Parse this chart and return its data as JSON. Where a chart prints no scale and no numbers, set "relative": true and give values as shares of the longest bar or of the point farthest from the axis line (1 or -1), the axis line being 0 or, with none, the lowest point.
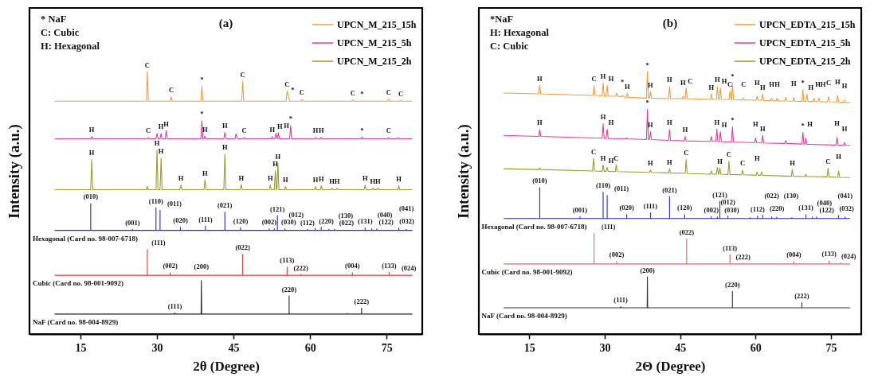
{
  "chart_data": [
    {
      "type": "line",
      "title": "(a)",
      "xlabel": "2θ (Degree)",
      "ylabel": "Intensity (a.u.)",
      "relative": true,
      "tick_labels": "x",
      "legend": "top right",
      "xlim": [
        5,
        82
      ],
      "xticks": [
        15,
        30,
        45,
        60,
        75
      ],
      "series": [
        {
          "name": "UPCN_M_215_15h",
          "color": "#f0a040",
          "x": [
            10,
            27.9,
            28.1,
            28.3,
            32.6,
            32.8,
            33.0,
            38.6,
            38.8,
            39.0,
            46.6,
            46.8,
            47.0,
            55.3,
            55.5,
            55.8,
            56.0,
            58.2,
            58.4,
            58.6,
            68.2,
            68.4,
            68.6,
            70.0,
            70.2,
            70.4,
            75.2,
            75.4,
            75.6,
            77.6,
            77.8,
            78.0,
            80
          ],
          "values": [
            0.887,
            0.887,
            1.0,
            0.887,
            0.887,
            0.904,
            0.887,
            0.887,
            0.943,
            0.887,
            0.887,
            0.962,
            0.887,
            0.887,
            0.926,
            0.905,
            0.887,
            0.887,
            0.894,
            0.887,
            0.887,
            0.892,
            0.887,
            0.887,
            0.889,
            0.887,
            0.887,
            0.895,
            0.887,
            0.887,
            0.89,
            0.887,
            0.887
          ]
        },
        {
          "name": "UPCN_M_215_5h",
          "color": "#e0409a",
          "x": [
            10,
            17.0,
            17.2,
            17.4,
            28.1,
            28.3,
            28.5,
            29.8,
            30.0,
            30.2,
            30.6,
            30.8,
            31.0,
            31.6,
            31.8,
            32.0,
            38.6,
            38.8,
            39.0,
            39.2,
            39.4,
            39.6,
            43.1,
            43.3,
            43.5,
            45.3,
            45.5,
            45.7,
            46.9,
            47.1,
            47.3,
            52.4,
            52.6,
            52.8,
            53.1,
            53.3,
            53.5,
            53.6,
            53.8,
            54.0,
            56.0,
            56.2,
            56.4,
            60.9,
            61.1,
            61.3,
            62.0,
            62.2,
            62.4,
            70.0,
            70.2,
            70.4,
            75.2,
            75.4,
            75.6,
            77.1,
            77.3,
            77.5,
            80
          ],
          "values": [
            0.744,
            0.744,
            0.752,
            0.744,
            0.744,
            0.749,
            0.744,
            0.744,
            0.764,
            0.744,
            0.744,
            0.764,
            0.744,
            0.744,
            0.775,
            0.744,
            0.744,
            0.813,
            0.744,
            0.744,
            0.754,
            0.744,
            0.744,
            0.768,
            0.744,
            0.744,
            0.763,
            0.744,
            0.744,
            0.749,
            0.744,
            0.744,
            0.752,
            0.744,
            0.744,
            0.764,
            0.744,
            0.744,
            0.767,
            0.744,
            0.744,
            0.794,
            0.744,
            0.744,
            0.749,
            0.744,
            0.744,
            0.749,
            0.744,
            0.744,
            0.751,
            0.744,
            0.744,
            0.749,
            0.744,
            0.744,
            0.749,
            0.744,
            0.744
          ]
        },
        {
          "name": "UPCN_M_215_2h",
          "color": "#9c9c2c",
          "x": [
            10,
            17.0,
            17.2,
            17.4,
            27.9,
            28.1,
            28.3,
            29.8,
            30.0,
            30.2,
            30.6,
            30.8,
            31.0,
            34.5,
            34.7,
            34.9,
            39.2,
            39.4,
            39.6,
            43.1,
            43.3,
            43.5,
            46.3,
            46.5,
            46.7,
            52.0,
            52.2,
            52.4,
            53.0,
            53.2,
            53.4,
            53.5,
            53.7,
            53.9,
            55.0,
            55.2,
            55.4,
            60.9,
            61.1,
            61.3,
            62.0,
            62.2,
            62.4,
            64.1,
            64.3,
            64.5,
            65.1,
            65.3,
            65.5,
            70.6,
            70.8,
            71.0,
            72.1,
            72.3,
            72.5,
            73.1,
            73.3,
            73.5,
            77.2,
            77.4,
            77.6,
            80
          ],
          "values": [
            0.55,
            0.55,
            0.665,
            0.55,
            0.55,
            0.562,
            0.55,
            0.55,
            0.701,
            0.55,
            0.55,
            0.67,
            0.55,
            0.55,
            0.567,
            0.55,
            0.55,
            0.587,
            0.55,
            0.55,
            0.685,
            0.55,
            0.55,
            0.569,
            0.55,
            0.55,
            0.568,
            0.55,
            0.55,
            0.622,
            0.55,
            0.55,
            0.651,
            0.55,
            0.55,
            0.562,
            0.55,
            0.55,
            0.562,
            0.55,
            0.55,
            0.565,
            0.55,
            0.55,
            0.556,
            0.55,
            0.55,
            0.556,
            0.55,
            0.55,
            0.567,
            0.55,
            0.55,
            0.556,
            0.55,
            0.55,
            0.556,
            0.55,
            0.55,
            0.565,
            0.55,
            0.55
          ]
        },
        {
          "color": "#2828c8",
          "x": [
            10,
            17.0,
            17.0,
            17.0,
            25.2,
            25.2,
            25.2,
            29.8,
            29.8,
            29.8,
            30.6,
            30.6,
            30.6,
            34.6,
            34.6,
            34.6,
            39.5,
            39.5,
            39.5,
            43.3,
            43.3,
            43.3,
            46.4,
            46.4,
            46.4,
            52.0,
            52.0,
            52.0,
            53.0,
            53.0,
            53.0,
            53.6,
            53.6,
            53.6,
            55.1,
            55.1,
            55.1,
            59.5,
            59.5,
            59.5,
            61.0,
            61.0,
            61.0,
            62.2,
            62.2,
            62.2,
            63.7,
            63.7,
            63.7,
            64.8,
            64.8,
            64.8,
            70.8,
            70.8,
            70.8,
            72.1,
            72.1,
            72.1,
            73.1,
            73.1,
            73.1,
            77.4,
            77.4,
            77.4,
            78.9,
            78.9,
            78.9,
            80
          ],
          "values": [
            0.395,
            0.395,
            0.497,
            0.395,
            0.395,
            0.399,
            0.395,
            0.395,
            0.481,
            0.395,
            0.395,
            0.471,
            0.395,
            0.395,
            0.407,
            0.395,
            0.395,
            0.412,
            0.395,
            0.395,
            0.464,
            0.395,
            0.395,
            0.405,
            0.395,
            0.395,
            0.401,
            0.395,
            0.395,
            0.401,
            0.395,
            0.395,
            0.451,
            0.395,
            0.395,
            0.401,
            0.395,
            0.395,
            0.399,
            0.395,
            0.395,
            0.404,
            0.395,
            0.395,
            0.407,
            0.395,
            0.395,
            0.399,
            0.395,
            0.395,
            0.399,
            0.395,
            0.395,
            0.405,
            0.395,
            0.395,
            0.401,
            0.395,
            0.395,
            0.401,
            0.395,
            0.395,
            0.404,
            0.395,
            0.395,
            0.399,
            0.395,
            0.395
          ]
        },
        {
          "color": "#e03a3a",
          "x": [
            10,
            28.1,
            28.1,
            28.1,
            32.6,
            32.6,
            32.6,
            46.8,
            46.8,
            46.8,
            55.5,
            55.5,
            55.5,
            58.2,
            58.2,
            58.2,
            68.3,
            68.3,
            68.3,
            75.5,
            75.5,
            75.5,
            77.8,
            77.8,
            77.8,
            80
          ],
          "values": [
            0.224,
            0.224,
            0.322,
            0.224,
            0.224,
            0.234,
            0.224,
            0.224,
            0.304,
            0.224,
            0.224,
            0.255,
            0.224,
            0.224,
            0.227,
            0.224,
            0.224,
            0.234,
            0.224,
            0.224,
            0.235,
            0.224,
            0.224,
            0.225,
            0.224,
            0.224
          ]
        },
        {
          "color": "#222222",
          "x": [
            10,
            33.4,
            33.5,
            33.6,
            38.65,
            38.7,
            38.75,
            55.9,
            55.9,
            55.9,
            67.3,
            67.3,
            67.3,
            70.1,
            70.1,
            70.1,
            80
          ],
          "values": [
            0.076,
            0.076,
            0.08,
            0.076,
            0.076,
            0.204,
            0.076,
            0.076,
            0.145,
            0.076,
            0.076,
            0.079,
            0.076,
            0.076,
            0.098,
            0.076,
            0.076
          ]
        }
      ],
      "annotations": [
        "* NaF",
        "C: Cubic",
        "H: Hexagonal",
        {
          "text": "C",
          "x": 28.1,
          "y": 1.0
        },
        {
          "text": "C",
          "x": 32.8,
          "y": 0.904
        },
        {
          "text": "*",
          "x": 38.8,
          "y": 0.943
        },
        {
          "text": "C",
          "x": 46.8,
          "y": 0.962
        },
        {
          "text": "C",
          "x": 55.5,
          "y": 0.926
        },
        {
          "text": "*",
          "x": 55.8,
          "y": 0.905
        },
        {
          "text": "C",
          "x": 58.4,
          "y": 0.894
        },
        {
          "text": "C",
          "x": 68.4,
          "y": 0.892
        },
        {
          "text": "*",
          "x": 70.2,
          "y": 0.889
        },
        {
          "text": "C",
          "x": 75.4,
          "y": 0.895
        },
        {
          "text": "C",
          "x": 77.8,
          "y": 0.89
        },
        {
          "text": "H",
          "x": 17.2,
          "y": 0.752
        },
        {
          "text": "C",
          "x": 28.3,
          "y": 0.749
        },
        {
          "text": "H",
          "x": 30.8,
          "y": 0.764
        },
        {
          "text": "H",
          "x": 31.8,
          "y": 0.775
        },
        {
          "text": "*",
          "x": 38.8,
          "y": 0.813
        },
        {
          "text": "H",
          "x": 39.4,
          "y": 0.754
        },
        {
          "text": "H",
          "x": 43.3,
          "y": 0.768
        },
        {
          "text": "C",
          "x": 47.1,
          "y": 0.749
        },
        {
          "text": "H",
          "x": 52.6,
          "y": 0.752
        },
        {
          "text": "H",
          "x": 53.3,
          "y": 0.764
        },
        {
          "text": "H",
          "x": 53.8,
          "y": 0.767
        },
        {
          "text": "*",
          "x": 56.2,
          "y": 0.794
        },
        {
          "text": "H",
          "x": 61.1,
          "y": 0.749
        },
        {
          "text": "H",
          "x": 62.2,
          "y": 0.749
        },
        {
          "text": "*",
          "x": 70.2,
          "y": 0.751
        },
        {
          "text": "C",
          "x": 75.4,
          "y": 0.749
        },
        {
          "text": "H",
          "x": 17.2,
          "y": 0.665
        },
        {
          "text": "H",
          "x": 30.0,
          "y": 0.701
        },
        {
          "text": "H",
          "x": 30.8,
          "y": 0.67
        },
        {
          "text": "H",
          "x": 34.7,
          "y": 0.567
        },
        {
          "text": "H",
          "x": 39.4,
          "y": 0.587
        },
        {
          "text": "H",
          "x": 43.3,
          "y": 0.685
        },
        {
          "text": "H",
          "x": 46.5,
          "y": 0.569
        },
        {
          "text": "H",
          "x": 52.2,
          "y": 0.568
        },
        {
          "text": "H",
          "x": 53.2,
          "y": 0.622
        },
        {
          "text": "H",
          "x": 53.7,
          "y": 0.651
        },
        {
          "text": "H",
          "x": 55.2,
          "y": 0.562
        },
        {
          "text": "H",
          "x": 61.1,
          "y": 0.562
        },
        {
          "text": "H",
          "x": 62.2,
          "y": 0.565
        },
        {
          "text": "H",
          "x": 64.3,
          "y": 0.556
        },
        {
          "text": "H",
          "x": 65.3,
          "y": 0.556
        },
        {
          "text": "H",
          "x": 70.8,
          "y": 0.567
        },
        {
          "text": "H",
          "x": 72.3,
          "y": 0.556
        },
        {
          "text": "H",
          "x": 73.3,
          "y": 0.556
        },
        {
          "text": "H",
          "x": 77.4,
          "y": 0.565
        },
        {
          "text": "(010)",
          "x": 17.0,
          "y": 0.497
        },
        {
          "text": "(001)",
          "x": 25.2,
          "y": 0.399
        },
        {
          "text": "(110)",
          "x": 29.8,
          "y": 0.481
        },
        {
          "text": "(011)",
          "x": 30.6,
          "y": 0.471
        },
        {
          "text": "(020)",
          "x": 34.6,
          "y": 0.407
        },
        {
          "text": "(111)",
          "x": 39.5,
          "y": 0.412
        },
        {
          "text": "(021)",
          "x": 43.3,
          "y": 0.464
        },
        {
          "text": "(120)",
          "x": 46.4,
          "y": 0.405
        },
        {
          "text": "(002)",
          "x": 52.0,
          "y": 0.401
        },
        {
          "text": "(030)",
          "x": 53.0,
          "y": 0.401
        },
        {
          "text": "(121)",
          "x": 53.6,
          "y": 0.451
        },
        {
          "text": "(012)",
          "x": 55.1,
          "y": 0.401
        },
        {
          "text": "(112)",
          "x": 59.5,
          "y": 0.399
        },
        {
          "text": "(220)",
          "x": 61.0,
          "y": 0.404
        },
        {
          "text": "(022)",
          "x": 63.7,
          "y": 0.399
        },
        {
          "text": "(130)",
          "x": 64.8,
          "y": 0.399
        },
        {
          "text": "(131)",
          "x": 70.8,
          "y": 0.405
        },
        {
          "text": "(122)",
          "x": 72.1,
          "y": 0.401
        },
        {
          "text": "(040)",
          "x": 73.1,
          "y": 0.401
        },
        {
          "text": "(032)",
          "x": 77.4,
          "y": 0.404
        },
        {
          "text": "(041)",
          "x": 78.9,
          "y": 0.399
        },
        {
          "text": "Hexagonal (Card no. 98-007-6718)",
          "x": 10,
          "y": 0.395
        },
        {
          "text": "(111)",
          "x": 28.1,
          "y": 0.322
        },
        {
          "text": "(002)",
          "x": 32.6,
          "y": 0.234
        },
        {
          "text": "(022)",
          "x": 46.8,
          "y": 0.304
        },
        {
          "text": "(113)",
          "x": 55.5,
          "y": 0.255
        },
        {
          "text": "(222)",
          "x": 58.2,
          "y": 0.227
        },
        {
          "text": "(004)",
          "x": 68.3,
          "y": 0.234
        },
        {
          "text": "(133)",
          "x": 75.5,
          "y": 0.235
        },
        {
          "text": "(024)",
          "x": 77.8,
          "y": 0.225
        },
        {
          "text": "Cubic (Card no. 98-001-9092)",
          "x": 10,
          "y": 0.224
        },
        {
          "text": "(111)",
          "x": 33.5,
          "y": 0.08
        },
        {
          "text": "(200)",
          "x": 38.7,
          "y": 0.204
        },
        {
          "text": "(220)",
          "x": 55.9,
          "y": 0.145
        },
        {
          "text": "(222)",
          "x": 70.1,
          "y": 0.098
        },
        {
          "text": "NaF (Card no. 98-004-8929)",
          "x": 10,
          "y": 0.076
        }
      ]
    },
    {
      "type": "line",
      "title": "(b)",
      "xlabel": "2Θ (Degree)",
      "ylabel": "Intensity (a.u.)",
      "relative": true,
      "tick_labels": "x",
      "legend": "top right",
      "xlim": [
        5,
        81
      ],
      "xticks": [
        15,
        30,
        45,
        60,
        75
      ],
      "series": [
        {
          "name": "UPCN_EDTA_215_15h",
          "color": "#f39c3c",
          "x": [
            10,
            16.9,
            17.1,
            17.3,
            27.7,
            27.9,
            28.1,
            29.5,
            29.7,
            29.9,
            30.3,
            30.5,
            30.7,
            32.2,
            32.4,
            32.6,
            33.3,
            33.5,
            33.7,
            34.3,
            34.5,
            34.7,
            38.3,
            38.5,
            38.7,
            38.9,
            39.1,
            39.3,
            42.7,
            42.9,
            43.1,
            45.4,
            45.6,
            45.8,
            46.0,
            46.2,
            46.4,
            51.0,
            51.2,
            51.4,
            52.2,
            52.4,
            52.6,
            52.8,
            53.0,
            53.2,
            54.7,
            54.9,
            55.1,
            55.2,
            55.4,
            55.6,
            57.4,
            57.6,
            57.8,
            60.1,
            60.3,
            60.5,
            61.2,
            61.4,
            61.6,
            63.0,
            63.2,
            63.4,
            64.1,
            64.3,
            64.5,
            65.8,
            66.0,
            66.2,
            67.4,
            67.6,
            67.8,
            69.2,
            69.4,
            69.6,
            70.0,
            70.2,
            70.4,
            71.4,
            71.6,
            71.8,
            72.4,
            72.6,
            72.8,
            74.3,
            74.5,
            74.7,
            76.1,
            76.3,
            76.5,
            77.5,
            77.7,
            77.9,
            78.7
          ],
          "values": [
            0.918,
            0.915,
            0.948,
            0.915,
            0.909,
            0.946,
            0.909,
            0.908,
            0.956,
            0.908,
            0.907,
            0.946,
            0.907,
            0.906,
            0.918,
            0.906,
            0.904,
            0.909,
            0.904,
            0.902,
            0.918,
            0.902,
            0.899,
            1.0,
            0.899,
            0.899,
            0.924,
            0.899,
            0.897,
            0.943,
            0.897,
            0.897,
            0.906,
            0.897,
            0.897,
            0.938,
            0.897,
            0.894,
            0.914,
            0.894,
            0.894,
            0.943,
            0.894,
            0.894,
            0.938,
            0.894,
            0.893,
            0.925,
            0.893,
            0.893,
            0.955,
            0.893,
            0.892,
            0.899,
            0.892,
            0.891,
            0.906,
            0.891,
            0.89,
            0.914,
            0.89,
            0.889,
            0.899,
            0.889,
            0.888,
            0.899,
            0.888,
            0.888,
            0.902,
            0.888,
            0.887,
            0.902,
            0.887,
            0.886,
            0.932,
            0.886,
            0.886,
            0.914,
            0.886,
            0.886,
            0.899,
            0.886,
            0.885,
            0.899,
            0.885,
            0.885,
            0.904,
            0.885,
            0.884,
            0.909,
            0.884,
            0.883,
            0.892,
            0.883,
            0.882
          ]
        },
        {
          "name": "UPCN_EDTA_215_5h",
          "color": "#e0409a",
          "x": [
            10,
            16.9,
            17.1,
            17.3,
            29.5,
            29.7,
            29.9,
            30.3,
            30.5,
            30.7,
            34.2,
            34.4,
            34.6,
            38.3,
            38.5,
            38.7,
            38.9,
            39.1,
            39.3,
            42.7,
            42.9,
            43.1,
            45.8,
            46.0,
            46.2,
            51.0,
            51.2,
            51.4,
            52.1,
            52.3,
            52.5,
            52.8,
            53.0,
            53.2,
            55.2,
            55.4,
            55.6,
            59.8,
            60.0,
            60.2,
            61.2,
            61.4,
            61.6,
            65.8,
            66.0,
            66.2,
            69.2,
            69.4,
            69.6,
            69.8,
            70.0,
            70.2,
            76.0,
            76.2,
            76.4,
            77.5,
            77.7,
            77.9,
            78.7
          ],
          "values": [
            0.757,
            0.753,
            0.779,
            0.753,
            0.746,
            0.801,
            0.746,
            0.745,
            0.781,
            0.745,
            0.744,
            0.747,
            0.744,
            0.741,
            0.857,
            0.741,
            0.741,
            0.771,
            0.741,
            0.738,
            0.779,
            0.738,
            0.736,
            0.753,
            0.736,
            0.734,
            0.753,
            0.734,
            0.734,
            0.781,
            0.734,
            0.733,
            0.771,
            0.733,
            0.732,
            0.789,
            0.732,
            0.729,
            0.747,
            0.729,
            0.728,
            0.757,
            0.728,
            0.726,
            0.737,
            0.726,
            0.724,
            0.769,
            0.724,
            0.723,
            0.747,
            0.723,
            0.72,
            0.749,
            0.72,
            0.719,
            0.73,
            0.719,
            0.718
          ]
        },
        {
          "name": "UPCN_EDTA_215_2h",
          "color": "#9c9c30",
          "x": [
            10,
            16.9,
            17.1,
            17.3,
            27.6,
            27.8,
            28.0,
            29.5,
            29.7,
            29.9,
            30.3,
            30.5,
            30.7,
            32.1,
            32.3,
            32.5,
            38.9,
            39.1,
            39.3,
            42.7,
            42.9,
            43.1,
            46.0,
            46.2,
            46.4,
            51.0,
            51.2,
            51.4,
            52.2,
            52.4,
            52.6,
            52.7,
            52.9,
            53.1,
            54.5,
            54.7,
            54.9,
            57.2,
            57.4,
            57.6,
            60.1,
            60.3,
            60.5,
            61.0,
            61.2,
            61.4,
            67.1,
            67.3,
            67.5,
            69.8,
            70.0,
            70.2,
            74.2,
            74.4,
            74.6,
            76.3,
            76.5,
            76.7,
            78.7
          ],
          "values": [
            0.63,
            0.627,
            0.633,
            0.627,
            0.621,
            0.669,
            0.621,
            0.62,
            0.645,
            0.62,
            0.62,
            0.635,
            0.62,
            0.619,
            0.645,
            0.619,
            0.616,
            0.625,
            0.616,
            0.614,
            0.63,
            0.614,
            0.612,
            0.664,
            0.612,
            0.609,
            0.622,
            0.609,
            0.609,
            0.635,
            0.609,
            0.609,
            0.633,
            0.609,
            0.608,
            0.659,
            0.608,
            0.607,
            0.625,
            0.607,
            0.605,
            0.618,
            0.605,
            0.605,
            0.618,
            0.605,
            0.601,
            0.627,
            0.601,
            0.6,
            0.608,
            0.6,
            0.599,
            0.632,
            0.599,
            0.597,
            0.622,
            0.597,
            0.596
          ]
        },
        {
          "color": "#2828c8",
          "x": [
            10,
            17.1,
            17.1,
            17.1,
            25.1,
            25.1,
            25.1,
            29.7,
            29.7,
            29.7,
            30.5,
            30.5,
            30.5,
            34.4,
            34.4,
            34.4,
            39.1,
            39.1,
            39.1,
            42.9,
            42.9,
            42.9,
            45.9,
            45.9,
            45.9,
            51.2,
            51.2,
            51.2,
            52.4,
            52.4,
            52.4,
            52.9,
            52.9,
            52.9,
            54.5,
            54.5,
            54.5,
            58.9,
            58.9,
            58.9,
            60.4,
            60.4,
            60.4,
            61.4,
            61.4,
            61.4,
            63.2,
            63.2,
            63.2,
            64.2,
            64.2,
            64.2,
            67.2,
            67.2,
            67.2,
            70.0,
            70.0,
            70.0,
            71.3,
            71.3,
            71.3,
            72.1,
            72.1,
            72.1,
            76.5,
            76.5,
            76.5,
            77.8,
            77.8,
            77.8,
            78.7
          ],
          "values": [
            0.44,
            0.44,
            0.558,
            0.44,
            0.44,
            0.447,
            0.44,
            0.44,
            0.541,
            0.44,
            0.44,
            0.528,
            0.44,
            0.44,
            0.455,
            0.44,
            0.44,
            0.462,
            0.44,
            0.44,
            0.524,
            0.44,
            0.44,
            0.455,
            0.44,
            0.44,
            0.448,
            0.44,
            0.44,
            0.446,
            0.44,
            0.44,
            0.506,
            0.44,
            0.44,
            0.45,
            0.44,
            0.44,
            0.444,
            0.44,
            0.44,
            0.45,
            0.44,
            0.44,
            0.453,
            0.44,
            0.44,
            0.446,
            0.44,
            0.44,
            0.446,
            0.44,
            0.44,
            0.444,
            0.44,
            0.44,
            0.455,
            0.44,
            0.44,
            0.446,
            0.44,
            0.44,
            0.446,
            0.44,
            0.44,
            0.452,
            0.44,
            0.44,
            0.446,
            0.44,
            0.44
          ]
        },
        {
          "color": "#e06464",
          "x": [
            10,
            27.9,
            27.9,
            27.9,
            32.4,
            32.4,
            32.4,
            46.3,
            46.3,
            46.3,
            54.9,
            54.9,
            54.9,
            57.5,
            57.5,
            57.5,
            67.6,
            67.6,
            67.6,
            74.6,
            74.6,
            74.6,
            76.9,
            76.9,
            76.9,
            78.7
          ],
          "values": [
            0.267,
            0.267,
            0.384,
            0.267,
            0.267,
            0.277,
            0.267,
            0.267,
            0.362,
            0.267,
            0.267,
            0.303,
            0.267,
            0.267,
            0.269,
            0.267,
            0.267,
            0.277,
            0.267,
            0.267,
            0.279,
            0.267,
            0.267,
            0.271,
            0.267,
            0.267
          ]
        },
        {
          "color": "#333333",
          "x": [
            10,
            33.1,
            33.2,
            33.3,
            38.45,
            38.5,
            38.55,
            55.4,
            55.4,
            55.4,
            69.2,
            69.2,
            69.2,
            78.7
          ],
          "values": [
            0.1,
            0.1,
            0.104,
            0.1,
            0.1,
            0.218,
            0.1,
            0.1,
            0.163,
            0.1,
            0.1,
            0.12,
            0.1,
            0.1
          ]
        }
      ],
      "annotations": [
        "*NaF",
        "H: Hexagonal",
        "C: Cubic",
        {
          "text": "H",
          "x": 17.1,
          "y": 0.948
        },
        {
          "text": "C",
          "x": 27.9,
          "y": 0.946
        },
        {
          "text": "H",
          "x": 29.7,
          "y": 0.956
        },
        {
          "text": "H",
          "x": 30.5,
          "y": 0.946
        },
        {
          "text": "*",
          "x": 33.5,
          "y": 0.909
        },
        {
          "text": "H",
          "x": 34.5,
          "y": 0.918
        },
        {
          "text": "*",
          "x": 38.5,
          "y": 1.0
        },
        {
          "text": "H",
          "x": 39.1,
          "y": 0.924
        },
        {
          "text": "H",
          "x": 42.9,
          "y": 0.943
        },
        {
          "text": "H",
          "x": 45.6,
          "y": 0.906
        },
        {
          "text": "C",
          "x": 46.2,
          "y": 0.938
        },
        {
          "text": "H",
          "x": 51.2,
          "y": 0.914
        },
        {
          "text": "H",
          "x": 52.4,
          "y": 0.943
        },
        {
          "text": "H",
          "x": 53.0,
          "y": 0.938
        },
        {
          "text": "C",
          "x": 54.9,
          "y": 0.925
        },
        {
          "text": "*",
          "x": 55.4,
          "y": 0.955
        },
        {
          "text": "C",
          "x": 57.6,
          "y": 0.899
        },
        {
          "text": "H",
          "x": 60.3,
          "y": 0.906
        },
        {
          "text": "H",
          "x": 61.4,
          "y": 0.914
        },
        {
          "text": "H",
          "x": 63.2,
          "y": 0.899
        },
        {
          "text": "H",
          "x": 64.3,
          "y": 0.899
        },
        {
          "text": "H",
          "x": 67.6,
          "y": 0.902
        },
        {
          "text": "*",
          "x": 69.4,
          "y": 0.932
        },
        {
          "text": "H",
          "x": 70.2,
          "y": 0.914
        },
        {
          "text": "H",
          "x": 71.6,
          "y": 0.899
        },
        {
          "text": "H",
          "x": 72.6,
          "y": 0.899
        },
        {
          "text": "C",
          "x": 74.5,
          "y": 0.904
        },
        {
          "text": "H",
          "x": 76.3,
          "y": 0.909
        },
        {
          "text": "H",
          "x": 77.7,
          "y": 0.892
        },
        {
          "text": "H",
          "x": 17.1,
          "y": 0.779
        },
        {
          "text": "H",
          "x": 29.7,
          "y": 0.801
        },
        {
          "text": "H",
          "x": 30.5,
          "y": 0.781
        },
        {
          "text": "*",
          "x": 38.5,
          "y": 0.857
        },
        {
          "text": "H",
          "x": 39.1,
          "y": 0.771
        },
        {
          "text": "H",
          "x": 42.9,
          "y": 0.779
        },
        {
          "text": "H",
          "x": 46.0,
          "y": 0.753
        },
        {
          "text": "H",
          "x": 52.3,
          "y": 0.781
        },
        {
          "text": "H",
          "x": 53.0,
          "y": 0.771
        },
        {
          "text": "*",
          "x": 55.4,
          "y": 0.789
        },
        {
          "text": "H",
          "x": 60.0,
          "y": 0.747
        },
        {
          "text": "H",
          "x": 61.4,
          "y": 0.757
        },
        {
          "text": "*",
          "x": 69.4,
          "y": 0.769
        },
        {
          "text": "H",
          "x": 70.0,
          "y": 0.747
        },
        {
          "text": "H",
          "x": 76.2,
          "y": 0.749
        },
        {
          "text": "H",
          "x": 77.7,
          "y": 0.73
        },
        {
          "text": "C",
          "x": 27.8,
          "y": 0.669
        },
        {
          "text": "H",
          "x": 29.7,
          "y": 0.645
        },
        {
          "text": "H",
          "x": 30.5,
          "y": 0.635
        },
        {
          "text": "C",
          "x": 32.3,
          "y": 0.645
        },
        {
          "text": "H",
          "x": 39.1,
          "y": 0.625
        },
        {
          "text": "H",
          "x": 42.9,
          "y": 0.63
        },
        {
          "text": "C",
          "x": 46.2,
          "y": 0.664
        },
        {
          "text": "H",
          "x": 52.9,
          "y": 0.633
        },
        {
          "text": "C",
          "x": 54.7,
          "y": 0.659
        },
        {
          "text": "C",
          "x": 57.4,
          "y": 0.625
        },
        {
          "text": "H",
          "x": 60.3,
          "y": 0.618
        },
        {
          "text": "H",
          "x": 67.3,
          "y": 0.627
        },
        {
          "text": "C",
          "x": 74.4,
          "y": 0.632
        },
        {
          "text": "H",
          "x": 76.5,
          "y": 0.622
        },
        {
          "text": "(010)",
          "x": 17.1,
          "y": 0.558
        },
        {
          "text": "(001)",
          "x": 25.1,
          "y": 0.447
        },
        {
          "text": "(110)",
          "x": 29.7,
          "y": 0.541
        },
        {
          "text": "(011)",
          "x": 30.5,
          "y": 0.528
        },
        {
          "text": "(020)",
          "x": 34.4,
          "y": 0.455
        },
        {
          "text": "(111)",
          "x": 39.1,
          "y": 0.462
        },
        {
          "text": "(021)",
          "x": 42.9,
          "y": 0.524
        },
        {
          "text": "(120)",
          "x": 45.9,
          "y": 0.455
        },
        {
          "text": "(002)",
          "x": 51.2,
          "y": 0.448
        },
        {
          "text": "(030)",
          "x": 52.4,
          "y": 0.446
        },
        {
          "text": "(121)",
          "x": 52.9,
          "y": 0.506
        },
        {
          "text": "(012)",
          "x": 54.5,
          "y": 0.45
        },
        {
          "text": "(112)",
          "x": 60.4,
          "y": 0.45
        },
        {
          "text": "(220)",
          "x": 61.4,
          "y": 0.453
        },
        {
          "text": "(022)",
          "x": 63.2,
          "y": 0.446
        },
        {
          "text": "(130)",
          "x": 64.2,
          "y": 0.446
        },
        {
          "text": "(131)",
          "x": 70.0,
          "y": 0.455
        },
        {
          "text": "(122)",
          "x": 71.3,
          "y": 0.446
        },
        {
          "text": "(040)",
          "x": 72.1,
          "y": 0.446
        },
        {
          "text": "(032)",
          "x": 76.5,
          "y": 0.452
        },
        {
          "text": "(041)",
          "x": 77.8,
          "y": 0.446
        },
        {
          "text": "Hexagonal (Card no. 98-007-6718)",
          "x": 10,
          "y": 0.44
        },
        {
          "text": "(111)",
          "x": 27.9,
          "y": 0.384
        },
        {
          "text": "(002)",
          "x": 32.4,
          "y": 0.277
        },
        {
          "text": "(022)",
          "x": 46.3,
          "y": 0.362
        },
        {
          "text": "(113)",
          "x": 54.9,
          "y": 0.303
        },
        {
          "text": "(222)",
          "x": 57.5,
          "y": 0.269
        },
        {
          "text": "(004)",
          "x": 67.6,
          "y": 0.277
        },
        {
          "text": "(133)",
          "x": 74.6,
          "y": 0.279
        },
        {
          "text": "(024)",
          "x": 76.9,
          "y": 0.271
        },
        {
          "text": "Cubic (Card no. 98-001-9092)",
          "x": 10,
          "y": 0.267
        },
        {
          "text": "(111)",
          "x": 33.2,
          "y": 0.104
        },
        {
          "text": "(200)",
          "x": 38.5,
          "y": 0.218
        },
        {
          "text": "(220)",
          "x": 55.4,
          "y": 0.163
        },
        {
          "text": "(222)",
          "x": 69.2,
          "y": 0.12
        },
        {
          "text": "NaF (Card no. 98-004-8929)",
          "x": 10,
          "y": 0.1
        }
      ]
    }
  ]
}
